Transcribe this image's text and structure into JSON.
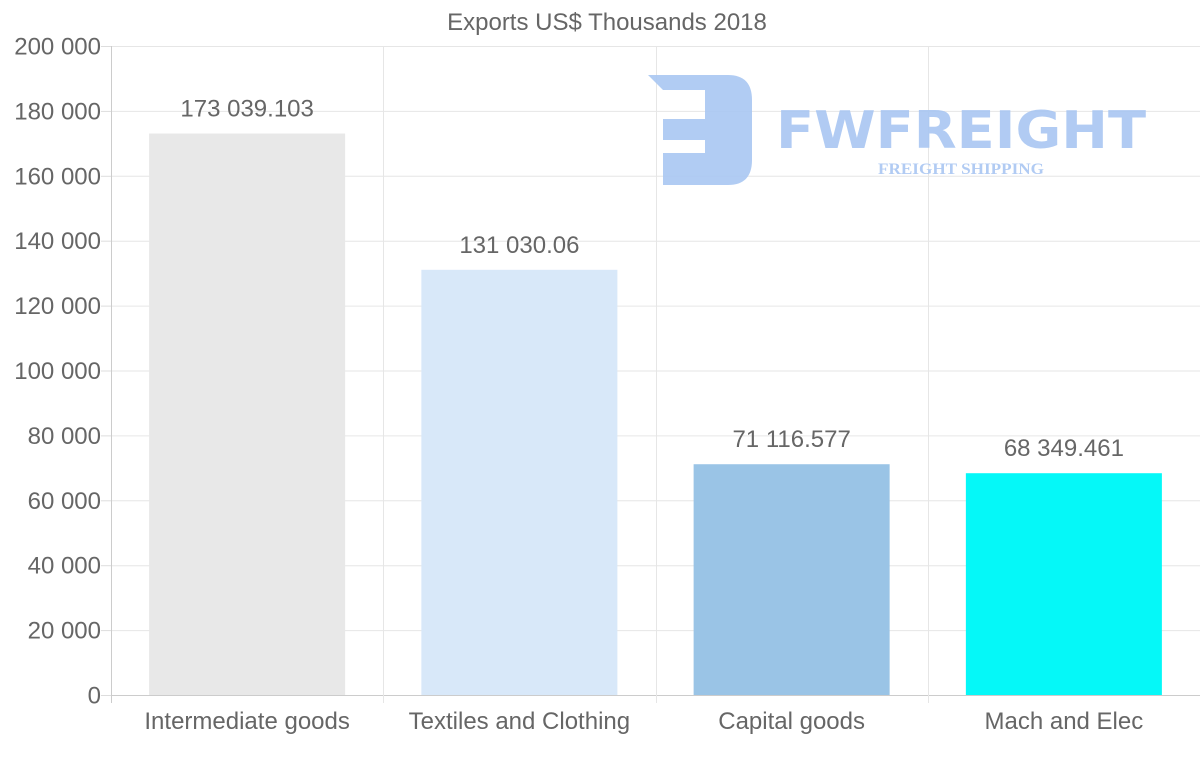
{
  "chart_data": {
    "type": "bar",
    "title": "Exports US$ Thousands 2018",
    "categories": [
      "Intermediate goods",
      "Textiles and Clothing",
      "Capital goods",
      "Mach and Elec"
    ],
    "values": [
      173039.103,
      131030.06,
      71116.577,
      68349.461
    ],
    "value_labels": [
      "173 039.103",
      "131 030.06",
      "71 116.577",
      "68 349.461"
    ],
    "colors": [
      "#e8e8e8",
      "#d8e8f9",
      "#9ac4e6",
      "#05f8f8"
    ],
    "ylim": [
      0,
      200000
    ],
    "yticks": [
      0,
      20000,
      40000,
      60000,
      80000,
      100000,
      120000,
      140000,
      160000,
      180000,
      200000
    ],
    "ytick_labels": [
      "0",
      "20 000",
      "40 000",
      "60 000",
      "80 000",
      "100 000",
      "120 000",
      "140 000",
      "160 000",
      "180 000",
      "200 000"
    ],
    "xlabel": "",
    "ylabel": "",
    "grid": true,
    "legend": "none"
  },
  "watermark": {
    "brand": "FWFREIGHT",
    "tagline": "FREIGHT SHIPPING",
    "color": "#a9c6f2"
  }
}
